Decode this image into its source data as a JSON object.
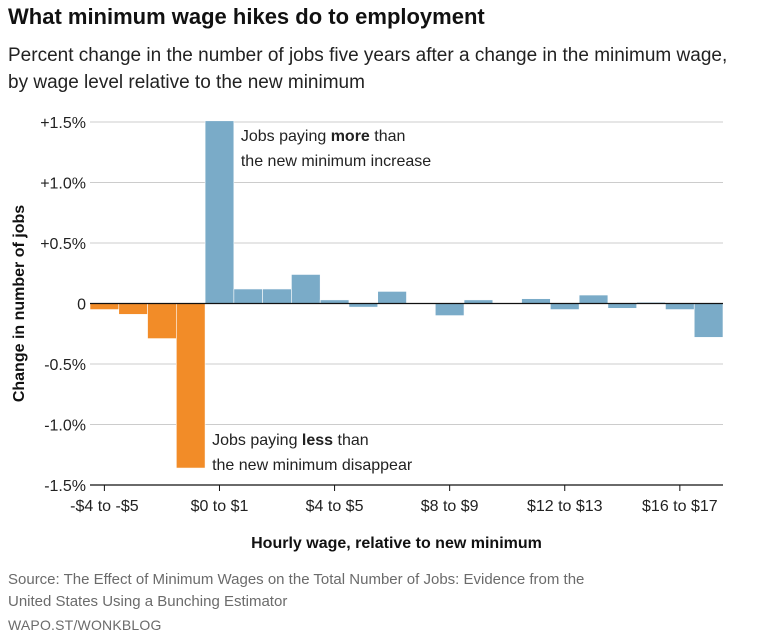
{
  "header": {
    "title": "What minimum wage hikes do to employment",
    "subtitle": "Percent change in the number of jobs five years after a change in the minimum wage, by wage level relative to the new minimum"
  },
  "footer": {
    "source": "Source: The Effect of Minimum Wages on the Total Number of Jobs: Evidence from the United States Using a Bunching Estimator",
    "credit": "WAPO.ST/WONKBLOG"
  },
  "colors": {
    "negative": "#f28c28",
    "positive": "#7aabc8",
    "grid": "#cccccc",
    "axis": "#111111"
  },
  "chart_data": {
    "type": "bar",
    "title": "What minimum wage hikes do to employment",
    "subtitle": "Percent change in the number of jobs five years after a change in the minimum wage, by wage level relative to the new minimum",
    "xlabel": "Hourly wage, relative to new minimum",
    "ylabel": "Change in number of jobs",
    "ylim": [
      -1.5,
      1.5
    ],
    "grid": true,
    "y_ticks": [
      {
        "value": 1.5,
        "label": "+1.5%"
      },
      {
        "value": 1.0,
        "label": "+1.0%"
      },
      {
        "value": 0.5,
        "label": "+0.5%"
      },
      {
        "value": 0,
        "label": "0"
      },
      {
        "value": -0.5,
        "label": "-0.5%"
      },
      {
        "value": -1.0,
        "label": "-1.0%"
      },
      {
        "value": -1.5,
        "label": "-1.5%"
      }
    ],
    "x_tick_labels": [
      {
        "bin": 0,
        "label": "-$4 to -$5"
      },
      {
        "bin": 4,
        "label": "$0 to $1"
      },
      {
        "bin": 8,
        "label": "$4 to $5"
      },
      {
        "bin": 12,
        "label": "$8 to $9"
      },
      {
        "bin": 16,
        "label": "$12 to $13"
      },
      {
        "bin": 20,
        "label": "$16 to $17"
      }
    ],
    "values": [
      -0.05,
      -0.09,
      -0.29,
      -1.36,
      1.51,
      0.12,
      0.12,
      0.24,
      0.03,
      -0.03,
      0.1,
      0.0,
      -0.1,
      0.03,
      0.0,
      0.04,
      -0.05,
      0.07,
      -0.04,
      0.01,
      -0.05,
      -0.28
    ],
    "annotations": [
      {
        "anchor": "positive",
        "bin": 4,
        "lines": [
          [
            "Jobs paying ",
            "more",
            " than"
          ],
          [
            "the new minimum increase"
          ]
        ]
      },
      {
        "anchor": "negative",
        "bin": 3,
        "lines": [
          [
            "Jobs paying ",
            "less",
            " than"
          ],
          [
            "the new minimum disappear"
          ]
        ]
      }
    ]
  }
}
